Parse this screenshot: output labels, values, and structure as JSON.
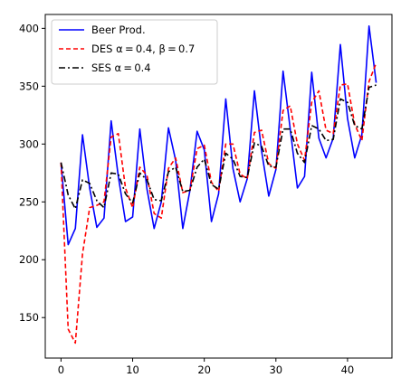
{
  "chart_data": {
    "type": "line",
    "title": "",
    "xlabel": "",
    "ylabel": "",
    "xlim": [
      -2.2,
      46.2
    ],
    "ylim": [
      115,
      412
    ],
    "xticks": [
      0,
      10,
      20,
      30,
      40
    ],
    "yticks": [
      150,
      200,
      250,
      300,
      350,
      400
    ],
    "grid": false,
    "legend_position": "top-left",
    "x": [
      0,
      1,
      2,
      3,
      4,
      5,
      6,
      7,
      8,
      9,
      10,
      11,
      12,
      13,
      14,
      15,
      16,
      17,
      18,
      19,
      20,
      21,
      22,
      23,
      24,
      25,
      26,
      27,
      28,
      29,
      30,
      31,
      32,
      33,
      34,
      35,
      36,
      37,
      38,
      39,
      40,
      41,
      42,
      43,
      44
    ],
    "series": [
      {
        "name": "Beer Prod.",
        "color": "#0000ff",
        "style": "solid",
        "values": [
          284,
          213,
          227,
          308,
          262,
          228,
          236,
          320,
          272,
          233,
          237,
          313,
          261,
          227,
          250,
          314,
          286,
          227,
          260,
          311,
          295,
          233,
          257,
          339,
          279,
          250,
          270,
          346,
          294,
          255,
          278,
          363,
          313,
          262,
          272,
          362,
          305,
          288,
          305,
          386,
          322,
          288,
          308,
          402,
          353
        ]
      },
      {
        "name": "DES $\\alpha=0.4,\\ \\beta=0.7$",
        "color": "#ff0000",
        "style": "dashed",
        "values": [
          284,
          140,
          128,
          205,
          245,
          247,
          250,
          306,
          309,
          262,
          245,
          280,
          273,
          240,
          236,
          279,
          288,
          258,
          260,
          296,
          299,
          267,
          259,
          300,
          300,
          274,
          270,
          310,
          312,
          283,
          279,
          329,
          333,
          300,
          286,
          336,
          346,
          312,
          309,
          351,
          352,
          317,
          303,
          354,
          370
        ]
      },
      {
        "name": "SES $\\alpha=0.4$",
        "color": "#000000",
        "style": "dashdot",
        "values": [
          284,
          256,
          244,
          269,
          266,
          251,
          245,
          275,
          274,
          257,
          249,
          275,
          269,
          252,
          251,
          276,
          280,
          259,
          260,
          280,
          287,
          265,
          261,
          292,
          287,
          272,
          271,
          301,
          298,
          281,
          280,
          313,
          313,
          292,
          284,
          316,
          313,
          303,
          304,
          339,
          336,
          316,
          313,
          349,
          351
        ]
      }
    ]
  }
}
